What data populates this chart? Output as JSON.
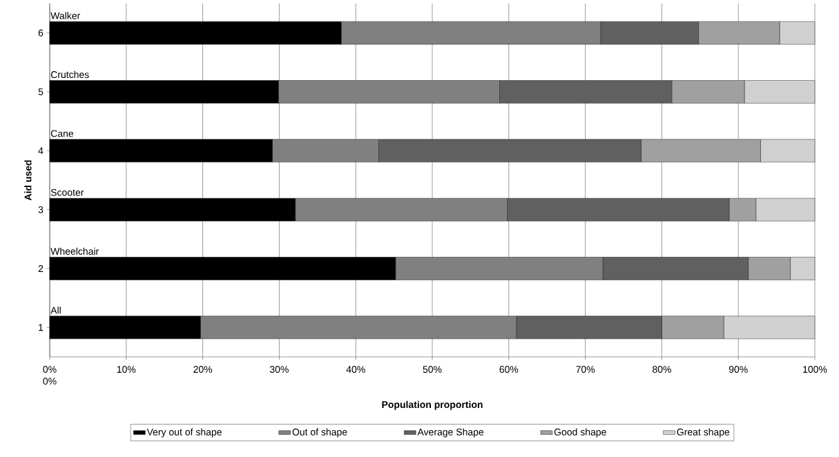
{
  "chart_data": {
    "type": "bar",
    "orientation": "horizontal",
    "stacked": true,
    "xlabel": "Population proportion",
    "ylabel": "Aid used",
    "categories": [
      "6",
      "5",
      "4",
      "3",
      "2",
      "1"
    ],
    "series": [
      {
        "name": "Very out of shape",
        "color": "#000000",
        "values": [
          38.1,
          29.9,
          29.1,
          32.1,
          45.2,
          19.7
        ]
      },
      {
        "name": "Out of shape",
        "color": "#808080",
        "values": [
          33.9,
          28.9,
          13.9,
          27.7,
          27.1,
          41.3
        ]
      },
      {
        "name": "Average Shape",
        "color": "#606060",
        "values": [
          12.8,
          22.5,
          34.3,
          29.0,
          19.0,
          19.0
        ]
      },
      {
        "name": "Good shape",
        "color": "#a0a0a0",
        "values": [
          10.6,
          9.5,
          15.6,
          3.5,
          5.5,
          8.1
        ]
      },
      {
        "name": "Great shape",
        "color": "#d0d0d0",
        "values": [
          4.6,
          9.2,
          7.1,
          7.7,
          3.2,
          11.9
        ]
      }
    ],
    "xlim": [
      0,
      100
    ],
    "xticks": [
      {
        "value": 0,
        "label": "0%"
      },
      {
        "value": 10,
        "label": "10%"
      },
      {
        "value": 20,
        "label": "20%"
      },
      {
        "value": 30,
        "label": "30%"
      },
      {
        "value": 40,
        "label": "40%"
      },
      {
        "value": 50,
        "label": "50%"
      },
      {
        "value": 60,
        "label": "60%"
      },
      {
        "value": 70,
        "label": "70%"
      },
      {
        "value": 80,
        "label": "80%"
      },
      {
        "value": 90,
        "label": "90%"
      },
      {
        "value": 100,
        "label": "100%"
      }
    ],
    "annotations": [
      "Walker",
      "Crutches",
      "Cane",
      "Scooter",
      "Wheelchair",
      "All",
      "0%"
    ],
    "grid": "x",
    "legend": "bottom"
  }
}
